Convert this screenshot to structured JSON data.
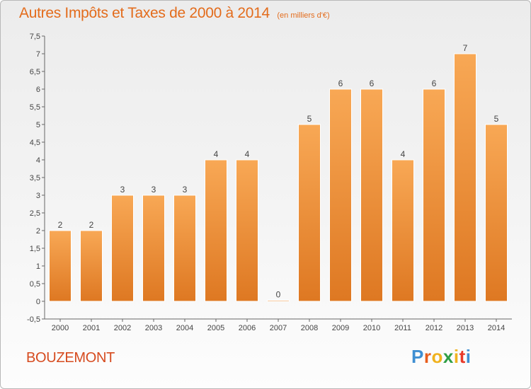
{
  "header": {
    "title": "Autres Impôts et Taxes de 2000 à 2014",
    "subtitle": "(en milliers d'€)"
  },
  "footer": {
    "commune": "BOUZEMONT",
    "brand": [
      "P",
      "r",
      "o",
      "x",
      "i",
      "t",
      "i"
    ]
  },
  "colors": {
    "bar_top": "#f8a855",
    "bar_bottom": "#de7822",
    "title": "#e36c1c",
    "commune": "#d64b1f",
    "brand": [
      "#3f8fd2",
      "#e85d1c",
      "#f0b21e",
      "#2f9e45",
      "#f0b21e",
      "#e83a2a",
      "#3f8fd2"
    ]
  },
  "chart_data": {
    "type": "bar",
    "categories": [
      "2000",
      "2001",
      "2002",
      "2003",
      "2004",
      "2005",
      "2006",
      "2007",
      "2008",
      "2009",
      "2010",
      "2011",
      "2012",
      "2013",
      "2014"
    ],
    "values": [
      2,
      2,
      3,
      3,
      3,
      4,
      4,
      0,
      5,
      6,
      6,
      4,
      6,
      7,
      5
    ],
    "ylim": [
      -0.5,
      7.5
    ],
    "yticks": [
      "-0,5",
      "0",
      "0,5",
      "1",
      "1,5",
      "2",
      "2,5",
      "3",
      "3,5",
      "4",
      "4,5",
      "5",
      "5,5",
      "6",
      "6,5",
      "7",
      "7,5"
    ],
    "grid": false,
    "legend": "none"
  }
}
